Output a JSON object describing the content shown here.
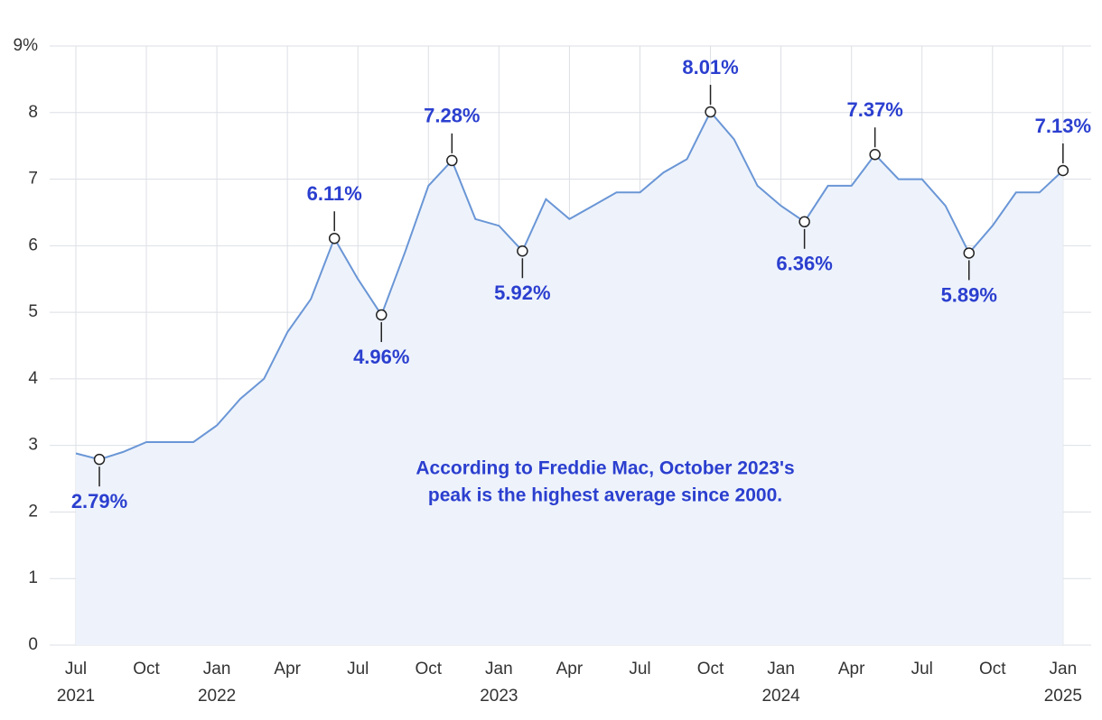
{
  "chart_data": {
    "type": "line",
    "annotation": [
      "According to Freddie Mac, October 2023's",
      "peak is the highest average since 2000."
    ],
    "x": [
      "2021-07",
      "2021-08",
      "2021-09",
      "2021-10",
      "2021-11",
      "2021-12",
      "2022-01",
      "2022-02",
      "2022-03",
      "2022-04",
      "2022-05",
      "2022-06",
      "2022-07",
      "2022-08",
      "2022-09",
      "2022-10",
      "2022-11",
      "2022-12",
      "2023-01",
      "2023-02",
      "2023-03",
      "2023-04",
      "2023-05",
      "2023-06",
      "2023-07",
      "2023-08",
      "2023-09",
      "2023-10",
      "2023-11",
      "2023-12",
      "2024-01",
      "2024-02",
      "2024-03",
      "2024-04",
      "2024-05",
      "2024-06",
      "2024-07",
      "2024-08",
      "2024-09",
      "2024-10",
      "2024-11",
      "2024-12",
      "2025-01"
    ],
    "series": [
      {
        "color": "#6a96d6",
        "values": [
          2.88,
          2.79,
          2.9,
          3.05,
          3.05,
          3.05,
          3.3,
          3.7,
          4.0,
          4.7,
          5.2,
          6.11,
          5.5,
          4.96,
          5.9,
          6.9,
          7.28,
          6.4,
          6.3,
          5.92,
          6.7,
          6.4,
          6.6,
          6.8,
          6.8,
          7.1,
          7.3,
          8.01,
          7.6,
          6.9,
          6.6,
          6.36,
          6.9,
          6.9,
          7.37,
          7.0,
          7.0,
          6.6,
          5.89,
          6.3,
          6.8,
          6.8,
          7.13
        ],
        "value_labels": [
          null,
          "2.79%",
          null,
          null,
          null,
          null,
          null,
          null,
          null,
          null,
          null,
          "6.11%",
          null,
          "4.96%",
          null,
          null,
          "7.28%",
          null,
          null,
          "5.92%",
          null,
          null,
          null,
          null,
          null,
          null,
          null,
          "8.01%",
          null,
          null,
          null,
          "6.36%",
          null,
          null,
          "7.37%",
          null,
          null,
          null,
          "5.89%",
          null,
          null,
          null,
          "7.13%"
        ]
      }
    ],
    "area_color": "#eef3fb",
    "label_color": "#2b3fcf",
    "marker_color": "#222222",
    "ylim": [
      0,
      9
    ],
    "yticks": [
      0,
      1,
      2,
      3,
      4,
      5,
      6,
      7,
      8,
      {
        "value": 9,
        "label": "9%"
      }
    ],
    "xticks": [
      {
        "value": "2021-07",
        "label": "Jul",
        "year": "2021"
      },
      {
        "value": "2021-10",
        "label": "Oct"
      },
      {
        "value": "2022-01",
        "label": "Jan",
        "year": "2022"
      },
      {
        "value": "2022-04",
        "label": "Apr"
      },
      {
        "value": "2022-07",
        "label": "Jul"
      },
      {
        "value": "2022-10",
        "label": "Oct"
      },
      {
        "value": "2023-01",
        "label": "Jan",
        "year": "2023"
      },
      {
        "value": "2023-04",
        "label": "Apr"
      },
      {
        "value": "2023-07",
        "label": "Jul"
      },
      {
        "value": "2023-10",
        "label": "Oct"
      },
      {
        "value": "2024-01",
        "label": "Jan",
        "year": "2024"
      },
      {
        "value": "2024-04",
        "label": "Apr"
      },
      {
        "value": "2024-07",
        "label": "Jul"
      },
      {
        "value": "2024-10",
        "label": "Oct"
      },
      {
        "value": "2025-01",
        "label": "Jan",
        "year": "2025"
      }
    ],
    "grid": true
  }
}
